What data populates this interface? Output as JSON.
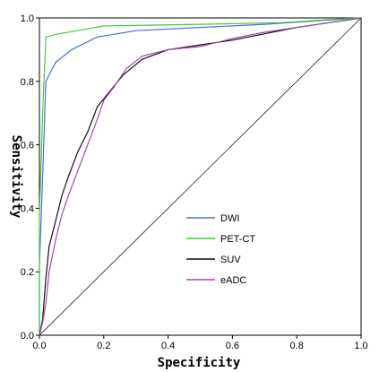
{
  "chart_data": {
    "type": "line",
    "title": "",
    "xlabel": "Specificity",
    "ylabel": "Sensitivity",
    "xlim": [
      0.0,
      1.0
    ],
    "ylim": [
      0.0,
      1.0
    ],
    "x_ticks": [
      "0.0",
      "0.2",
      "0.4",
      "0.6",
      "0.8",
      "1.0"
    ],
    "y_ticks": [
      "0.0",
      "0.2",
      "0.4",
      "0.6",
      "0.8",
      "1.0"
    ],
    "grid": false,
    "legend_position": "center-right",
    "series": [
      {
        "name": "DWI",
        "color": "#4f6fd1",
        "points": [
          [
            0.0,
            0.0
          ],
          [
            0.0,
            0.22
          ],
          [
            0.01,
            0.5
          ],
          [
            0.02,
            0.8
          ],
          [
            0.05,
            0.86
          ],
          [
            0.1,
            0.9
          ],
          [
            0.18,
            0.94
          ],
          [
            0.3,
            0.96
          ],
          [
            0.5,
            0.97
          ],
          [
            0.7,
            0.98
          ],
          [
            0.85,
            0.99
          ],
          [
            1.0,
            1.0
          ]
        ]
      },
      {
        "name": "PET-CT",
        "color": "#3ecc3e",
        "points": [
          [
            0.0,
            0.0
          ],
          [
            0.0,
            0.38
          ],
          [
            0.01,
            0.7
          ],
          [
            0.02,
            0.94
          ],
          [
            0.06,
            0.95
          ],
          [
            0.12,
            0.96
          ],
          [
            0.2,
            0.975
          ],
          [
            0.5,
            0.98
          ],
          [
            0.75,
            0.985
          ],
          [
            0.9,
            0.995
          ],
          [
            1.0,
            1.0
          ]
        ]
      },
      {
        "name": "SUV",
        "color": "#111111",
        "points": [
          [
            0.0,
            0.0
          ],
          [
            0.01,
            0.05
          ],
          [
            0.02,
            0.18
          ],
          [
            0.03,
            0.28
          ],
          [
            0.05,
            0.36
          ],
          [
            0.07,
            0.44
          ],
          [
            0.09,
            0.5
          ],
          [
            0.12,
            0.58
          ],
          [
            0.15,
            0.64
          ],
          [
            0.18,
            0.72
          ],
          [
            0.22,
            0.77
          ],
          [
            0.26,
            0.82
          ],
          [
            0.32,
            0.87
          ],
          [
            0.4,
            0.9
          ],
          [
            0.5,
            0.915
          ],
          [
            0.6,
            0.93
          ],
          [
            0.7,
            0.95
          ],
          [
            0.8,
            0.97
          ],
          [
            0.9,
            0.985
          ],
          [
            1.0,
            1.0
          ]
        ]
      },
      {
        "name": "eADC",
        "color": "#a04ca8",
        "points": [
          [
            0.0,
            0.0
          ],
          [
            0.01,
            0.04
          ],
          [
            0.02,
            0.1
          ],
          [
            0.03,
            0.2
          ],
          [
            0.05,
            0.3
          ],
          [
            0.07,
            0.38
          ],
          [
            0.09,
            0.44
          ],
          [
            0.12,
            0.52
          ],
          [
            0.15,
            0.6
          ],
          [
            0.18,
            0.68
          ],
          [
            0.2,
            0.74
          ],
          [
            0.23,
            0.78
          ],
          [
            0.27,
            0.84
          ],
          [
            0.32,
            0.88
          ],
          [
            0.4,
            0.9
          ],
          [
            0.5,
            0.91
          ],
          [
            0.6,
            0.935
          ],
          [
            0.7,
            0.955
          ],
          [
            0.8,
            0.97
          ],
          [
            0.9,
            0.985
          ],
          [
            1.0,
            1.0
          ]
        ]
      }
    ]
  },
  "axes_color": "#000000",
  "diagonal_color": "#000000"
}
